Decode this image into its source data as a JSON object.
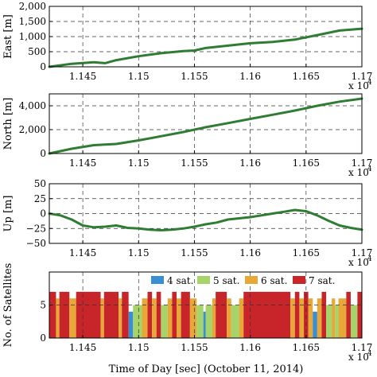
{
  "figure": {
    "xlabel": "Time of Day [sec] (October 11, 2014)",
    "exponent_label": "x 10",
    "exponent_power": "4"
  },
  "chart_data": [
    {
      "type": "line",
      "ylabel": "East [m]",
      "xlim": [
        11420,
        11700
      ],
      "ylim": [
        0,
        2000
      ],
      "yticks": [
        0,
        500,
        1000,
        1500,
        2000
      ],
      "ytick_labels": [
        "0",
        "500",
        "1,000",
        "1,500",
        "2,000"
      ],
      "xticks": [
        11450,
        11500,
        11550,
        11600,
        11650,
        11700
      ],
      "xtick_labels": [
        "1.145",
        "1.15",
        "1.155",
        "1.16",
        "1.165",
        "1.17"
      ],
      "grid": true,
      "series": [
        {
          "color": "#2e7d32",
          "x": [
            11420,
            11440,
            11460,
            11470,
            11480,
            11500,
            11520,
            11540,
            11550,
            11560,
            11580,
            11600,
            11620,
            11640,
            11660,
            11680,
            11700
          ],
          "y": [
            0,
            100,
            150,
            120,
            220,
            350,
            450,
            520,
            540,
            620,
            700,
            780,
            820,
            900,
            1050,
            1200,
            1260
          ]
        }
      ]
    },
    {
      "type": "line",
      "ylabel": "North [m]",
      "xlim": [
        11420,
        11700
      ],
      "ylim": [
        0,
        5000
      ],
      "yticks": [
        0,
        2000,
        4000
      ],
      "ytick_labels": [
        "0",
        "2,000",
        "4,000"
      ],
      "xticks": [
        11450,
        11500,
        11550,
        11600,
        11650,
        11700
      ],
      "xtick_labels": [
        "1.145",
        "1.15",
        "1.155",
        "1.16",
        "1.165",
        "1.17"
      ],
      "grid": true,
      "series": [
        {
          "color": "#2e7d32",
          "x": [
            11420,
            11440,
            11460,
            11480,
            11500,
            11520,
            11540,
            11560,
            11580,
            11600,
            11620,
            11640,
            11660,
            11680,
            11700
          ],
          "y": [
            0,
            400,
            700,
            800,
            1100,
            1450,
            1800,
            2200,
            2550,
            2900,
            3250,
            3600,
            4000,
            4350,
            4600
          ]
        }
      ]
    },
    {
      "type": "line",
      "ylabel": "Up [m]",
      "xlim": [
        11420,
        11700
      ],
      "ylim": [
        -50,
        50
      ],
      "yticks": [
        -50,
        -25,
        0,
        25,
        50
      ],
      "ytick_labels": [
        "−50",
        "−25",
        "0",
        "25",
        "50"
      ],
      "xticks": [
        11450,
        11500,
        11550,
        11600,
        11650,
        11700
      ],
      "xtick_labels": [
        "1.145",
        "1.15",
        "1.155",
        "1.16",
        "1.165",
        "1.17"
      ],
      "grid": true,
      "series": [
        {
          "color": "#2e7d32",
          "x": [
            11420,
            11430,
            11440,
            11450,
            11460,
            11470,
            11480,
            11490,
            11500,
            11510,
            11520,
            11530,
            11540,
            11550,
            11560,
            11570,
            11580,
            11590,
            11600,
            11610,
            11620,
            11630,
            11640,
            11650,
            11660,
            11670,
            11680,
            11690,
            11700
          ],
          "y": [
            0,
            -3,
            -10,
            -20,
            -23,
            -22,
            -20,
            -24,
            -25,
            -27,
            -28,
            -27,
            -25,
            -22,
            -18,
            -15,
            -10,
            -8,
            -6,
            -3,
            0,
            3,
            6,
            4,
            -3,
            -12,
            -20,
            -24,
            -27
          ]
        }
      ]
    },
    {
      "type": "bar",
      "ylabel": "No. of Satellites",
      "xlim": [
        11420,
        11700
      ],
      "ylim": [
        0,
        10
      ],
      "yticks": [
        0,
        5
      ],
      "ytick_labels": [
        "0",
        "5"
      ],
      "xticks": [
        11450,
        11500,
        11550,
        11600,
        11650,
        11700
      ],
      "xtick_labels": [
        "1.145",
        "1.15",
        "1.155",
        "1.16",
        "1.165",
        "1.17"
      ],
      "grid": true,
      "legend": {
        "position": "top-right",
        "entries": [
          {
            "label": "4 sat.",
            "color": "#3a8fd4",
            "value": 4
          },
          {
            "label": "5 sat.",
            "color": "#a6d36a",
            "value": 5
          },
          {
            "label": "6 sat.",
            "color": "#e8a838",
            "value": 6
          },
          {
            "label": "7 sat.",
            "color": "#c8252a",
            "value": 7
          }
        ]
      },
      "segments": [
        {
          "start": 11420,
          "end": 11426,
          "sats": 7
        },
        {
          "start": 11426,
          "end": 11429,
          "sats": 6
        },
        {
          "start": 11429,
          "end": 11438,
          "sats": 7
        },
        {
          "start": 11438,
          "end": 11444,
          "sats": 6
        },
        {
          "start": 11444,
          "end": 11466,
          "sats": 7
        },
        {
          "start": 11466,
          "end": 11469,
          "sats": 6
        },
        {
          "start": 11469,
          "end": 11482,
          "sats": 7
        },
        {
          "start": 11482,
          "end": 11485,
          "sats": 6
        },
        {
          "start": 11485,
          "end": 11491,
          "sats": 7
        },
        {
          "start": 11491,
          "end": 11495,
          "sats": 4
        },
        {
          "start": 11495,
          "end": 11503,
          "sats": 5
        },
        {
          "start": 11503,
          "end": 11508,
          "sats": 6
        },
        {
          "start": 11508,
          "end": 11512,
          "sats": 7
        },
        {
          "start": 11512,
          "end": 11516,
          "sats": 6
        },
        {
          "start": 11516,
          "end": 11520,
          "sats": 7
        },
        {
          "start": 11520,
          "end": 11526,
          "sats": 5
        },
        {
          "start": 11526,
          "end": 11530,
          "sats": 6
        },
        {
          "start": 11530,
          "end": 11534,
          "sats": 7
        },
        {
          "start": 11534,
          "end": 11538,
          "sats": 6
        },
        {
          "start": 11538,
          "end": 11546,
          "sats": 7
        },
        {
          "start": 11546,
          "end": 11552,
          "sats": 6
        },
        {
          "start": 11552,
          "end": 11558,
          "sats": 5
        },
        {
          "start": 11558,
          "end": 11560,
          "sats": 4
        },
        {
          "start": 11560,
          "end": 11566,
          "sats": 5
        },
        {
          "start": 11566,
          "end": 11569,
          "sats": 6
        },
        {
          "start": 11569,
          "end": 11579,
          "sats": 7
        },
        {
          "start": 11579,
          "end": 11583,
          "sats": 6
        },
        {
          "start": 11583,
          "end": 11590,
          "sats": 5
        },
        {
          "start": 11590,
          "end": 11594,
          "sats": 6
        },
        {
          "start": 11594,
          "end": 11636,
          "sats": 7
        },
        {
          "start": 11636,
          "end": 11640,
          "sats": 6
        },
        {
          "start": 11640,
          "end": 11644,
          "sats": 7
        },
        {
          "start": 11644,
          "end": 11648,
          "sats": 6
        },
        {
          "start": 11648,
          "end": 11652,
          "sats": 7
        },
        {
          "start": 11652,
          "end": 11656,
          "sats": 6
        },
        {
          "start": 11656,
          "end": 11660,
          "sats": 4
        },
        {
          "start": 11660,
          "end": 11664,
          "sats": 6
        },
        {
          "start": 11664,
          "end": 11668,
          "sats": 7
        },
        {
          "start": 11668,
          "end": 11673,
          "sats": 5
        },
        {
          "start": 11673,
          "end": 11676,
          "sats": 6
        },
        {
          "start": 11676,
          "end": 11679,
          "sats": 5
        },
        {
          "start": 11679,
          "end": 11686,
          "sats": 6
        },
        {
          "start": 11686,
          "end": 11690,
          "sats": 7
        },
        {
          "start": 11690,
          "end": 11696,
          "sats": 5
        },
        {
          "start": 11696,
          "end": 11700,
          "sats": 7
        }
      ]
    }
  ]
}
